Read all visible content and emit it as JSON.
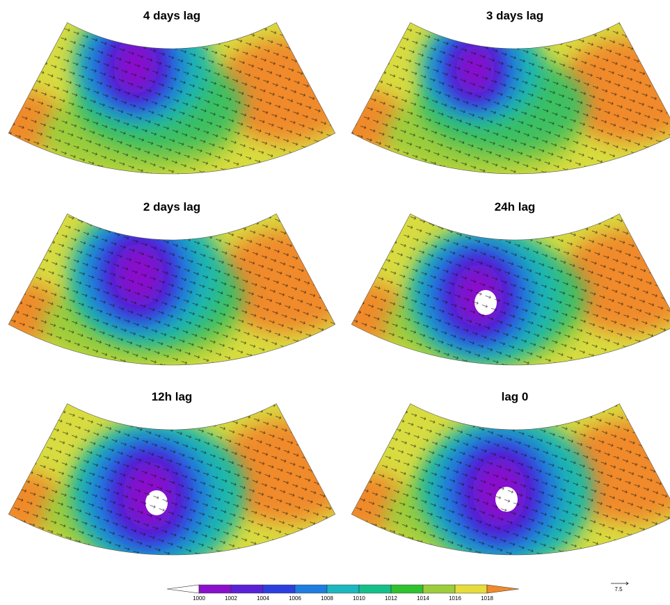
{
  "panels": [
    {
      "title": "4 days lag"
    },
    {
      "title": "3 days lag"
    },
    {
      "title": "2 days lag"
    },
    {
      "title": "24h lag"
    },
    {
      "title": "12h lag"
    },
    {
      "title": "lag 0"
    }
  ],
  "colorbar": {
    "labels": [
      "1000",
      "1002",
      "1004",
      "1006",
      "1008",
      "1010",
      "1012",
      "1014",
      "1016",
      "1018"
    ]
  },
  "reference_vector": "7.5"
}
